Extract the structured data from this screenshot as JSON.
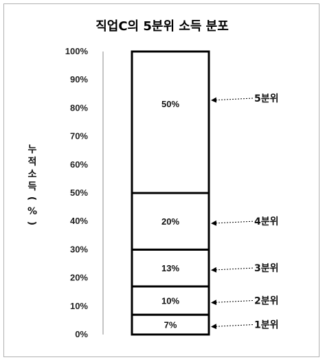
{
  "chart_data": {
    "type": "bar",
    "title": "직업C의 5분위 소득 분포",
    "ylabel_chars": [
      "누",
      "적",
      "소",
      "득",
      "(",
      "%",
      ")"
    ],
    "ylim": [
      0,
      100
    ],
    "yticks": [
      "0%",
      "10%",
      "20%",
      "30%",
      "40%",
      "50%",
      "60%",
      "70%",
      "80%",
      "90%",
      "100%"
    ],
    "series": [
      {
        "label": "7%",
        "annotation": "1분위",
        "value": 7
      },
      {
        "label": "10%",
        "annotation": "2분위",
        "value": 10
      },
      {
        "label": "13%",
        "annotation": "3분위",
        "value": 13
      },
      {
        "label": "20%",
        "annotation": "4분위",
        "value": 20
      },
      {
        "label": "50%",
        "annotation": "5분위",
        "value": 50
      }
    ],
    "stacked": true,
    "grid": false,
    "colors": {
      "fill": "#ffffff",
      "stroke": "#000000",
      "axis": "#888888"
    }
  }
}
